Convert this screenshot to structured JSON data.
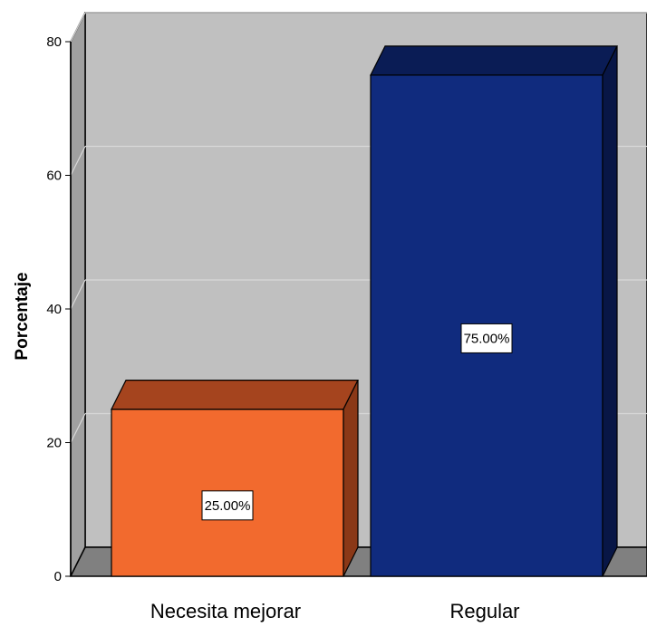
{
  "chart_data": {
    "type": "bar",
    "categories": [
      "Necesita mejorar",
      "Regular"
    ],
    "values": [
      25.0,
      75.0
    ],
    "data_labels": [
      "25.00%",
      "75.00%"
    ],
    "ylabel": "Porcentaje",
    "xlabel": "",
    "ylim": [
      0,
      80
    ],
    "yticks": [
      "0",
      "20",
      "40",
      "60",
      "80"
    ],
    "grid": true,
    "bar_colors": [
      "#F26A2E",
      "#102B7E"
    ],
    "bar_top_colors": [
      "#A5441E",
      "#0A1C55"
    ],
    "bar_side_colors": [
      "#8A3817",
      "#081646"
    ],
    "wall_color": "#C0C0C0",
    "floor_color": "#808080"
  }
}
